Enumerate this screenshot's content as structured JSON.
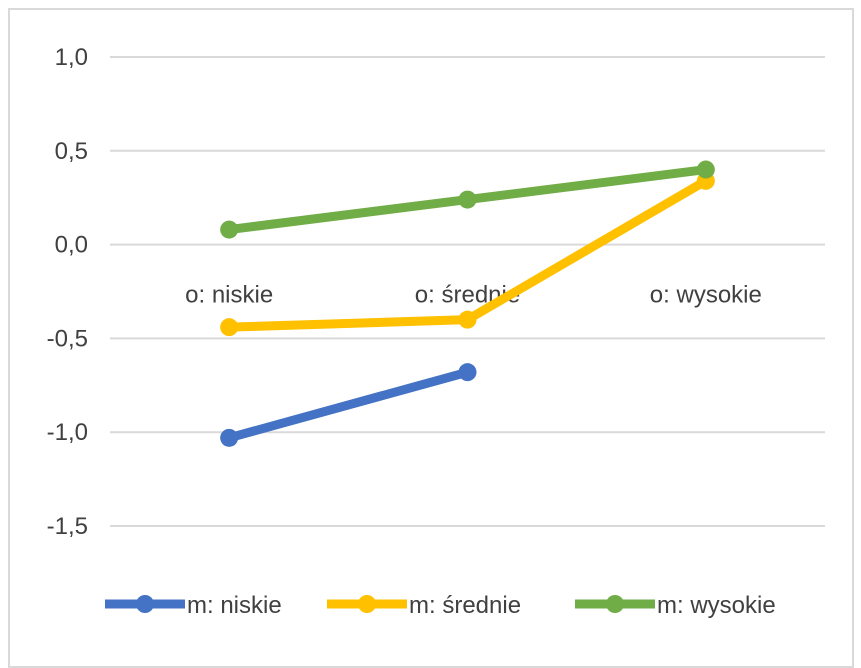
{
  "chart_data": {
    "type": "line",
    "categories": [
      "o: niskie",
      "o: średnie",
      "o: wysokie"
    ],
    "ylim": [
      -1.5,
      1.0
    ],
    "yticks": [
      1.0,
      0.5,
      0.0,
      -0.5,
      -1.0,
      -1.5
    ],
    "ytick_labels": [
      "1,0",
      "0,5",
      "0,0",
      "-0,5",
      "-1,0",
      "-1,5"
    ],
    "grid": true,
    "legend_position": "bottom",
    "series": [
      {
        "name": "m: niskie",
        "color": "#4472c4",
        "values": [
          -1.03,
          -0.68,
          null
        ]
      },
      {
        "name": "m: średnie",
        "color": "#ffc000",
        "values": [
          -0.44,
          -0.4,
          0.34
        ]
      },
      {
        "name": "m: wysokie",
        "color": "#70ad47",
        "values": [
          0.08,
          0.24,
          0.4
        ]
      }
    ]
  }
}
